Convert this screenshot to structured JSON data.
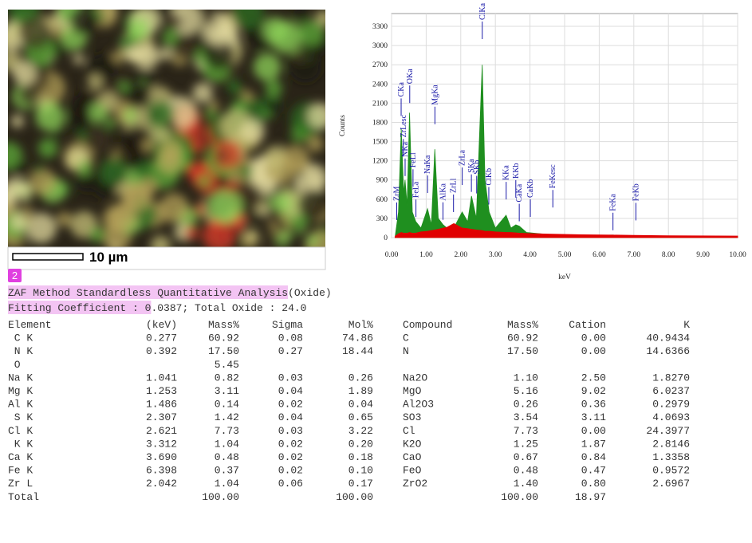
{
  "image": {
    "scale_label": "10 µm"
  },
  "badge": "2",
  "chart_data": {
    "type": "spectrum",
    "ylabel": "Counts",
    "xlabel": "keV",
    "xlim": [
      0,
      10
    ],
    "ylim": [
      0,
      3500
    ],
    "xticks": [
      {
        "value": 0,
        "label": "0.00"
      },
      {
        "value": 1,
        "label": "1.00"
      },
      {
        "value": 2,
        "label": "2.00"
      },
      {
        "value": 3,
        "label": "3.00"
      },
      {
        "value": 4,
        "label": "4.00"
      },
      {
        "value": 5,
        "label": "5.00"
      },
      {
        "value": 6,
        "label": "6.00"
      },
      {
        "value": 7,
        "label": "7.00"
      },
      {
        "value": 8,
        "label": "8.00"
      },
      {
        "value": 9,
        "label": "9.00"
      },
      {
        "value": 10,
        "label": "10.00"
      }
    ],
    "yticks": [
      0,
      300,
      600,
      900,
      1200,
      1500,
      1800,
      2100,
      2400,
      2700,
      3000,
      3300
    ],
    "grid": true,
    "x": [
      0.1,
      0.2,
      0.28,
      0.35,
      0.39,
      0.45,
      0.52,
      0.6,
      0.7,
      0.85,
      1.04,
      1.15,
      1.25,
      1.35,
      1.49,
      1.6,
      1.8,
      2.04,
      2.2,
      2.31,
      2.45,
      2.62,
      2.7,
      2.82,
      3.0,
      3.31,
      3.45,
      3.59,
      3.69,
      3.9,
      4.5,
      5.5,
      6.4,
      7.0,
      8.0,
      10.0
    ],
    "series": [
      {
        "color": "#1f8f1f",
        "values": [
          0,
          400,
          1700,
          700,
          900,
          500,
          1950,
          400,
          250,
          150,
          450,
          200,
          1380,
          300,
          200,
          150,
          150,
          400,
          250,
          650,
          300,
          2700,
          900,
          400,
          150,
          350,
          150,
          200,
          180,
          80,
          50,
          30,
          40,
          20,
          15,
          10
        ]
      },
      {
        "color": "#e00000",
        "values": [
          20,
          60,
          80,
          70,
          70,
          70,
          80,
          70,
          70,
          90,
          100,
          110,
          120,
          130,
          150,
          160,
          220,
          150,
          140,
          130,
          120,
          110,
          100,
          100,
          90,
          80,
          80,
          75,
          70,
          65,
          55,
          45,
          40,
          35,
          30,
          25
        ]
      }
    ],
    "annotations": [
      {
        "text": "ZrM",
        "x": 0.15
      },
      {
        "text": "CKa",
        "x": 0.277
      },
      {
        "text": "ZrLesc",
        "x": 0.34
      },
      {
        "text": "NKa",
        "x": 0.392
      },
      {
        "text": "OKa",
        "x": 0.525
      },
      {
        "text": "FeLl",
        "x": 0.62
      },
      {
        "text": "FeLa",
        "x": 0.705
      },
      {
        "text": "NaKa",
        "x": 1.041
      },
      {
        "text": "MgKa",
        "x": 1.253
      },
      {
        "text": "AlKa",
        "x": 1.486
      },
      {
        "text": "ZrLl",
        "x": 1.79
      },
      {
        "text": "ZrLa",
        "x": 2.042
      },
      {
        "text": "SKa",
        "x": 2.307
      },
      {
        "text": "SKb",
        "x": 2.46
      },
      {
        "text": "ClKa",
        "x": 2.621
      },
      {
        "text": "ClKb",
        "x": 2.81
      },
      {
        "text": "KKa",
        "x": 3.312
      },
      {
        "text": "KKb",
        "x": 3.59
      },
      {
        "text": "CaKa",
        "x": 3.69
      },
      {
        "text": "CaKb",
        "x": 4.01
      },
      {
        "text": "FeKesc",
        "x": 4.66
      },
      {
        "text": "FeKa",
        "x": 6.398
      },
      {
        "text": "FeKb",
        "x": 7.06
      }
    ]
  },
  "report": {
    "title": "ZAF Method Standardless Quantitative Analysis",
    "title_suffix": "(Oxide)",
    "fitting_a": "Fitting Coefficient : 0",
    "fitting_b": ".0387; Total Oxide : 24.0",
    "header": [
      "Element",
      "(keV)",
      "Mass%",
      "Sigma",
      "Mol%",
      "Compound",
      "Mass%",
      "Cation",
      "K"
    ],
    "rows": [
      [
        " C K",
        "0.277",
        "60.92",
        "0.08",
        "74.86",
        "C",
        "60.92",
        "0.00",
        "40.9434"
      ],
      [
        " N K",
        "0.392",
        "17.50",
        "0.27",
        "18.44",
        "N",
        "17.50",
        "0.00",
        "14.6366"
      ],
      [
        " O",
        null,
        "5.45",
        null,
        null,
        null,
        null,
        null,
        null
      ],
      [
        "Na K",
        "1.041",
        "0.82",
        "0.03",
        "0.26",
        "Na2O",
        "1.10",
        "2.50",
        "1.8270"
      ],
      [
        "Mg K",
        "1.253",
        "3.11",
        "0.04",
        "1.89",
        "MgO",
        "5.16",
        "9.02",
        "6.0237"
      ],
      [
        "Al K",
        "1.486",
        "0.14",
        "0.02",
        "0.04",
        "Al2O3",
        "0.26",
        "0.36",
        "0.2979"
      ],
      [
        " S K",
        "2.307",
        "1.42",
        "0.04",
        "0.65",
        "SO3",
        "3.54",
        "3.11",
        "4.0693"
      ],
      [
        "Cl K",
        "2.621",
        "7.73",
        "0.03",
        "3.22",
        "Cl",
        "7.73",
        "0.00",
        "24.3977"
      ],
      [
        " K K",
        "3.312",
        "1.04",
        "0.02",
        "0.20",
        "K2O",
        "1.25",
        "1.87",
        "2.8146"
      ],
      [
        "Ca K",
        "3.690",
        "0.48",
        "0.02",
        "0.18",
        "CaO",
        "0.67",
        "0.84",
        "1.3358"
      ],
      [
        "Fe K",
        "6.398",
        "0.37",
        "0.02",
        "0.10",
        "FeO",
        "0.48",
        "0.47",
        "0.9572"
      ],
      [
        "Zr L",
        "2.042",
        "1.04",
        "0.06",
        "0.17",
        "ZrO2",
        "1.40",
        "0.80",
        "2.6967"
      ],
      [
        "Total",
        null,
        "100.00",
        null,
        "100.00",
        null,
        "100.00",
        "18.97",
        null
      ]
    ]
  }
}
